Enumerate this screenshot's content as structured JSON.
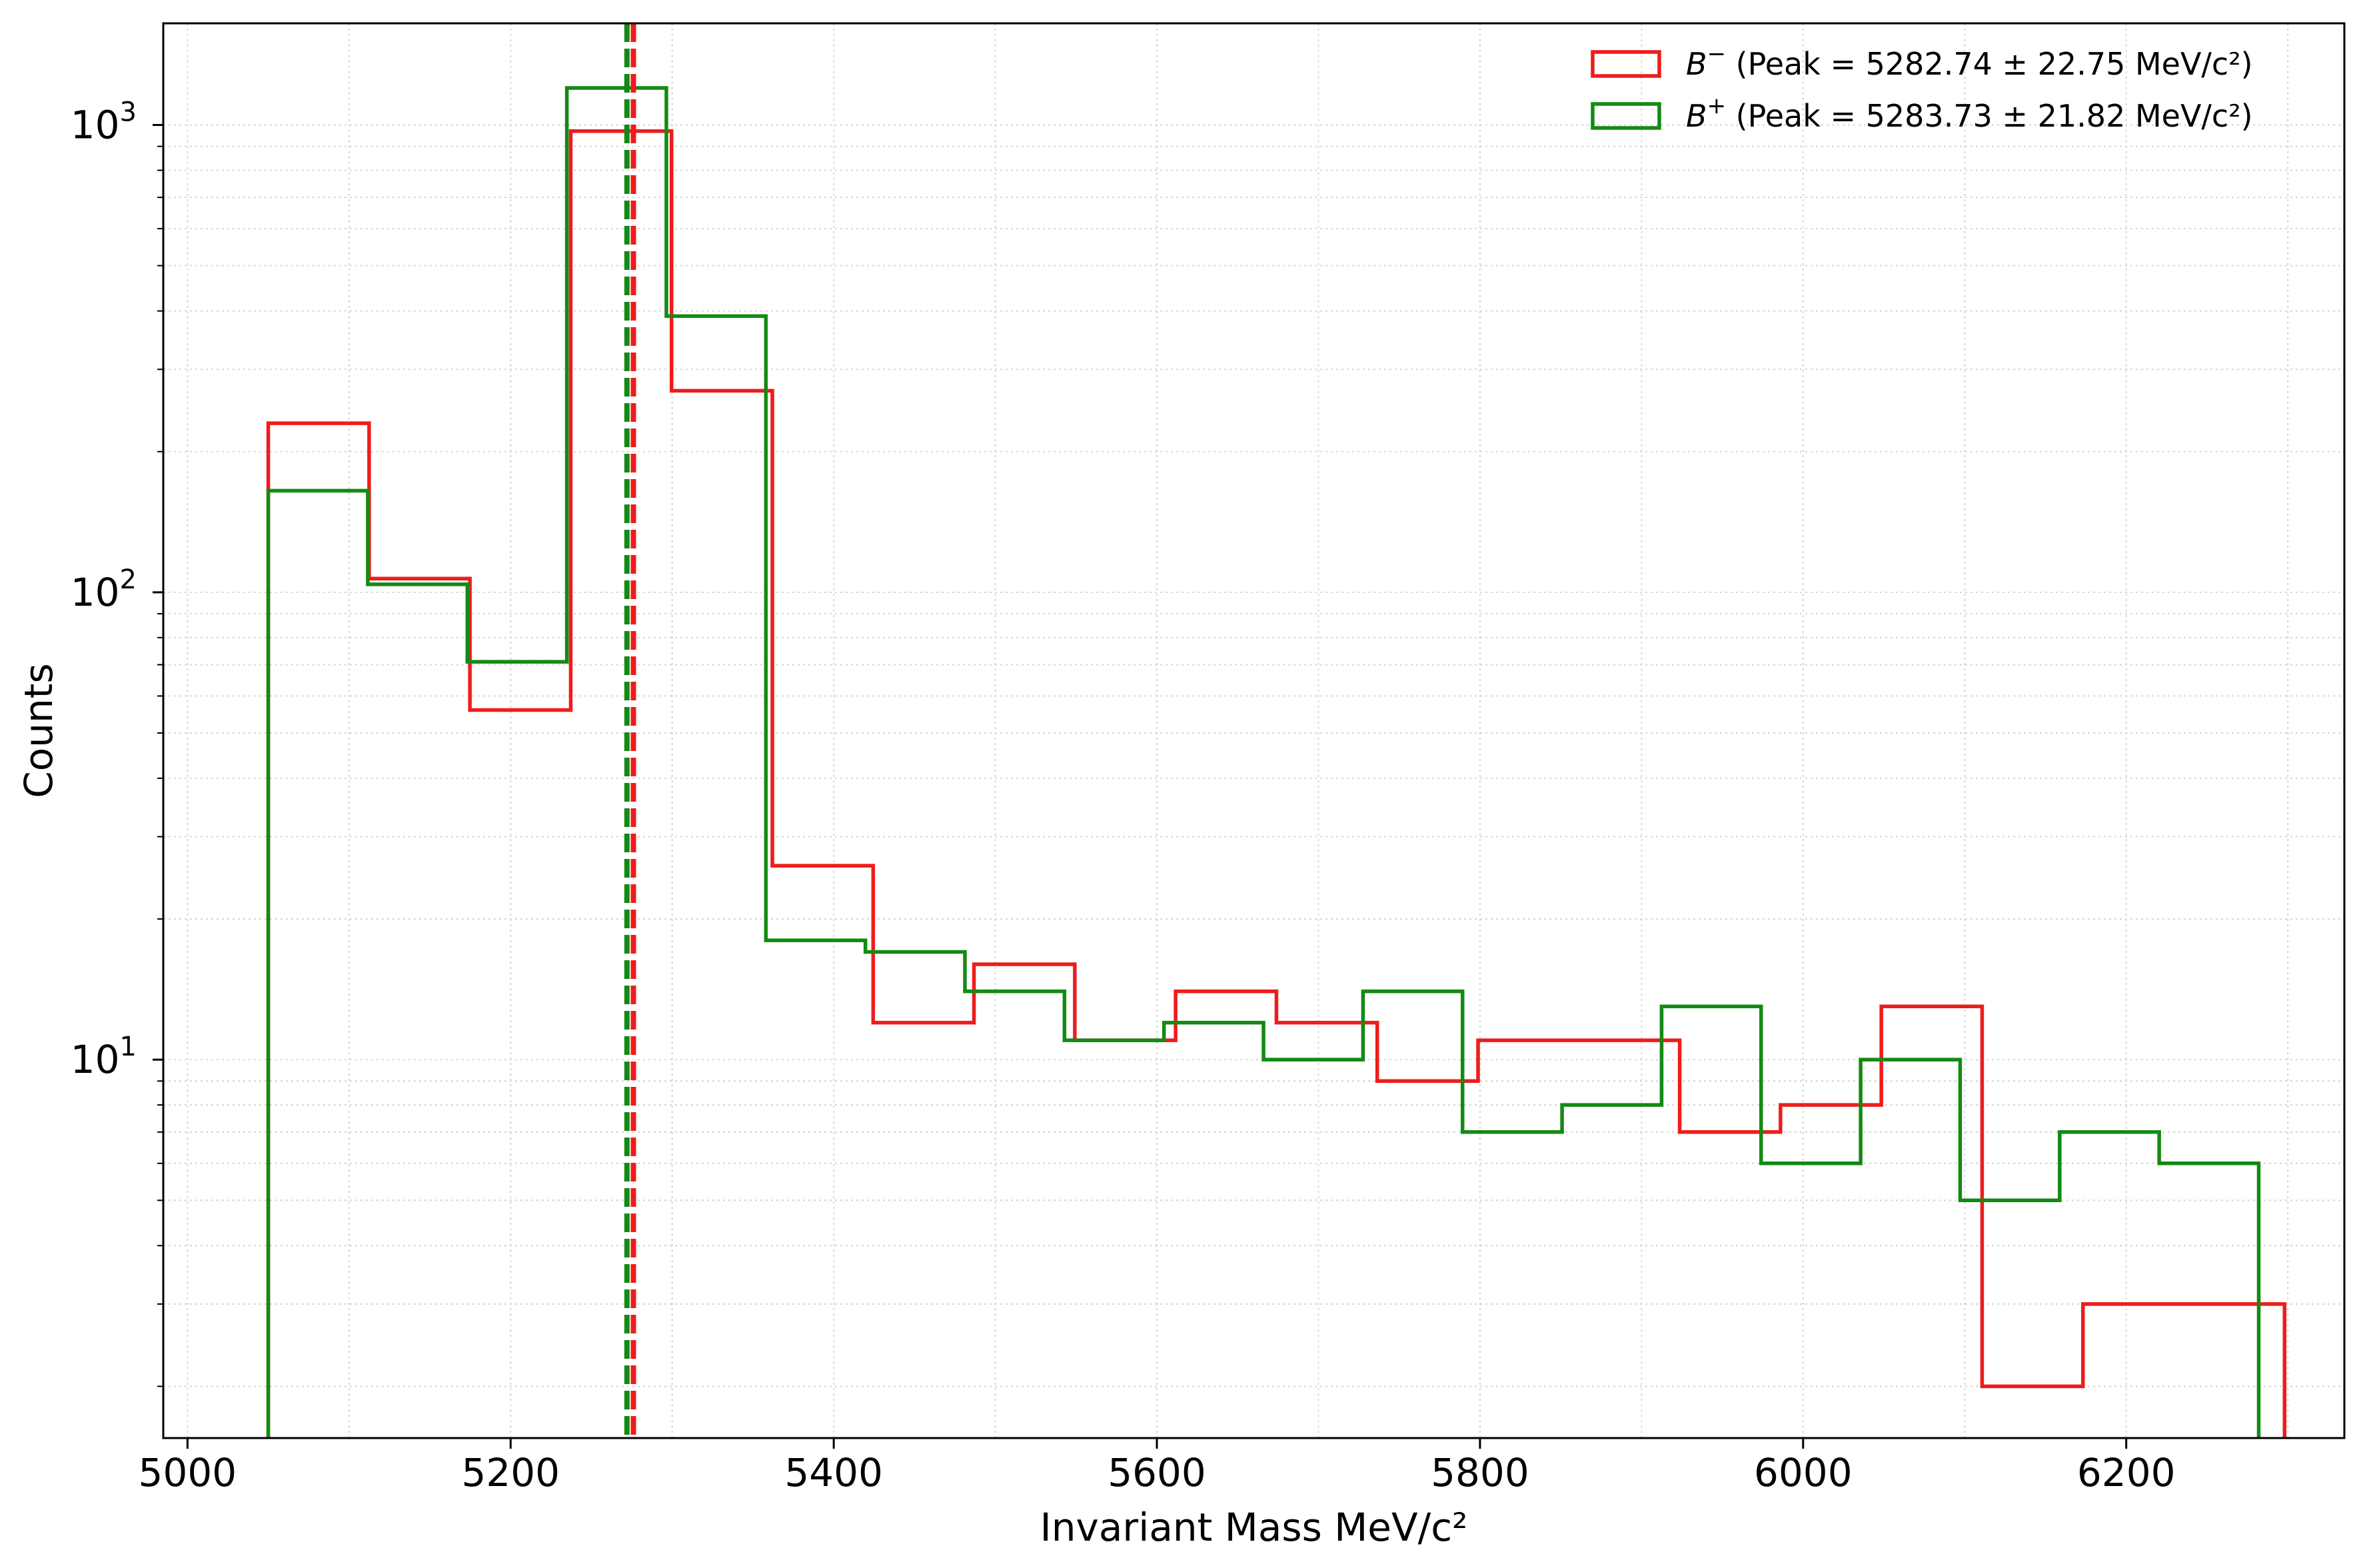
{
  "chart_data": {
    "type": "histogram",
    "title": "",
    "xlabel": "Invariant Mass MeV/c²",
    "ylabel": "Counts",
    "xlim": [
      4985,
      6335
    ],
    "ylim": [
      1.55,
      1650
    ],
    "yscale": "log",
    "grid": true,
    "legend_position": "top-right",
    "x_ticks": [
      5000,
      5200,
      5400,
      5600,
      5800,
      6000,
      6200
    ],
    "y_ticks": [
      {
        "value": 10,
        "base": "10",
        "exp": "1"
      },
      {
        "value": 100,
        "base": "10",
        "exp": "2"
      },
      {
        "value": 1000,
        "base": "10",
        "exp": "3"
      }
    ],
    "series": [
      {
        "name": "B⁻ (Peak = 5282.74 ± 22.75 MeV/c²)",
        "legend_symbol": "B",
        "legend_sup": "−",
        "legend_rest": " (Peak = 5282.74 ± 22.75 MeV/c²)",
        "color": "#ee1c1c",
        "edges": [
          5050,
          5112.4,
          5174.8,
          5237.2,
          5299.6,
          5362,
          5424.4,
          5486.8,
          5549.2,
          5611.6,
          5674,
          5736.4,
          5798.8,
          5861.2,
          5923.6,
          5986,
          6048.4,
          6110.8,
          6173.2,
          6235.6,
          6298
        ],
        "counts": [
          230,
          107,
          56,
          970,
          270,
          26,
          12,
          16,
          11,
          14,
          12,
          9,
          11,
          11,
          7,
          8,
          13,
          2,
          3,
          3
        ],
        "peak": 5276
      },
      {
        "name": "B⁺ (Peak = 5283.73 ± 21.82 MeV/c²)",
        "legend_symbol": "B",
        "legend_sup": "+",
        "legend_rest": " (Peak = 5283.73 ± 21.82 MeV/c²)",
        "color": "#138a13",
        "edges": [
          5050,
          5111.6,
          5173.2,
          5234.8,
          5296.4,
          5358,
          5419.6,
          5481.2,
          5542.8,
          5604.4,
          5666,
          5727.6,
          5789.2,
          5850.8,
          5912.4,
          5974,
          6035.6,
          6097.2,
          6158.8,
          6220.4,
          6282
        ],
        "counts": [
          165,
          104,
          71,
          1200,
          390,
          18,
          17,
          14,
          11,
          12,
          10,
          14,
          7,
          8,
          13,
          6,
          10,
          5,
          7,
          6
        ],
        "peak": 5272
      }
    ]
  }
}
